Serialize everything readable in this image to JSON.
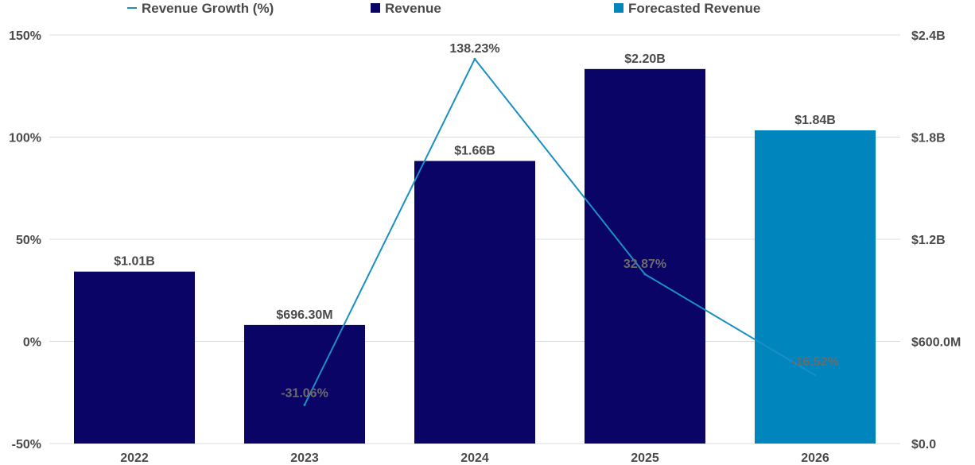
{
  "chart_data": {
    "type": "bar",
    "title": "",
    "categories": [
      "2022",
      "2023",
      "2024",
      "2025",
      "2026"
    ],
    "series": [
      {
        "name": "Revenue",
        "kind": "bar",
        "axis": "right",
        "values": [
          1.01,
          0.6963,
          1.66,
          2.2,
          1.84
        ],
        "unit": "billion USD",
        "labels": [
          "$1.01B",
          "$696.30M",
          "$1.66B",
          "$2.20B",
          "$1.84B"
        ],
        "color": "#0b0467",
        "forecast_color": "#0085bd",
        "forecast_flags": [
          false,
          false,
          false,
          false,
          true
        ]
      },
      {
        "name": "Revenue Growth (%)",
        "kind": "line",
        "axis": "left",
        "values": [
          null,
          -31.06,
          138.23,
          32.87,
          -16.52
        ],
        "labels": [
          "",
          "-31.06%",
          "138.23%",
          "32.87%",
          "-16.52%"
        ],
        "color": "#1a8fc4"
      }
    ],
    "legend": [
      {
        "label": "Revenue Growth (%)",
        "color": "#1a8fc4",
        "marker": "line"
      },
      {
        "label": "Revenue",
        "color": "#0b0467",
        "marker": "square"
      },
      {
        "label": "Forecasted Revenue",
        "color": "#0085bd",
        "marker": "square"
      }
    ],
    "legend_position": "top",
    "left_axis": {
      "label": "",
      "ylim": [
        -50,
        150
      ],
      "ticks": [
        -50,
        0,
        50,
        100,
        150
      ],
      "tick_labels": [
        "-50%",
        "0%",
        "50%",
        "100%",
        "150%"
      ]
    },
    "right_axis": {
      "label": "",
      "ylim": [
        0,
        2.4
      ],
      "ticks": [
        0,
        0.6,
        1.2,
        1.8,
        2.4
      ],
      "tick_labels": [
        "$0.0",
        "$600.0M",
        "$1.2B",
        "$1.8B",
        "$2.4B"
      ]
    },
    "grid": true
  }
}
